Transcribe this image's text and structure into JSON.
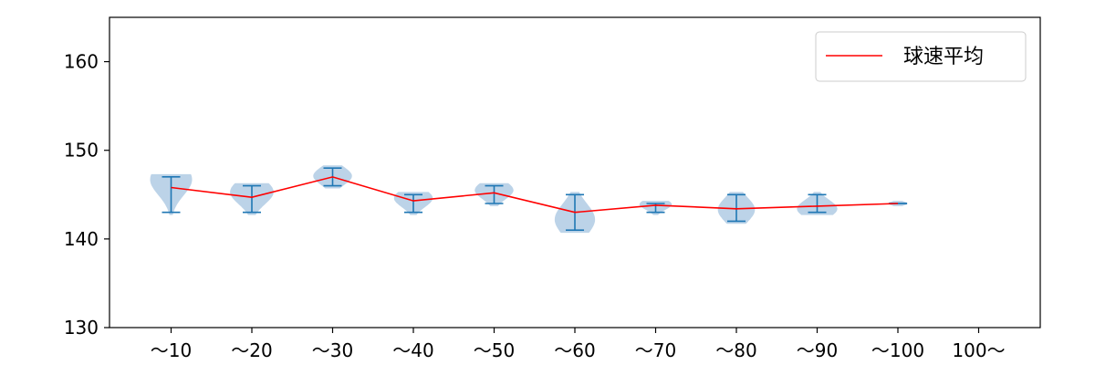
{
  "chart_data": {
    "type": "violin",
    "categories": [
      "〜10",
      "〜20",
      "〜30",
      "〜40",
      "〜50",
      "〜60",
      "〜70",
      "〜80",
      "〜90",
      "〜100",
      "100〜"
    ],
    "ylim": [
      130,
      165
    ],
    "yticks": [
      130,
      140,
      150,
      160
    ],
    "title": "",
    "xlabel": "",
    "ylabel": "",
    "legend": {
      "position": "top-right",
      "entries": [
        "球速平均"
      ]
    },
    "grid": false,
    "colors": {
      "violin_fill": "#a6c4e0",
      "whisker": "#1f77b4",
      "mean_line": "#ff0000"
    },
    "distributions": [
      {
        "category": "〜10",
        "min": 143,
        "max": 147,
        "mean": 145.8,
        "halfwidth": 0.26,
        "peak": 146.7
      },
      {
        "category": "〜20",
        "min": 143,
        "max": 146,
        "mean": 144.7,
        "halfwidth": 0.27,
        "peak": 145.3
      },
      {
        "category": "〜30",
        "min": 146,
        "max": 148,
        "mean": 147.0,
        "halfwidth": 0.24,
        "peak": 147.1
      },
      {
        "category": "〜40",
        "min": 143,
        "max": 145,
        "mean": 144.3,
        "halfwidth": 0.24,
        "peak": 144.6
      },
      {
        "category": "〜50",
        "min": 144,
        "max": 146,
        "mean": 145.2,
        "halfwidth": 0.24,
        "peak": 145.5
      },
      {
        "category": "〜60",
        "min": 141,
        "max": 145,
        "mean": 143.0,
        "halfwidth": 0.25,
        "peak": 142.2
      },
      {
        "category": "〜70",
        "min": 143,
        "max": 144,
        "mean": 143.8,
        "halfwidth": 0.2,
        "peak": 143.9
      },
      {
        "category": "〜80",
        "min": 142,
        "max": 145,
        "mean": 143.4,
        "halfwidth": 0.23,
        "peak": 143.3
      },
      {
        "category": "〜90",
        "min": 143,
        "max": 145,
        "mean": 143.7,
        "halfwidth": 0.25,
        "peak": 143.4
      },
      {
        "category": "〜100",
        "min": 144,
        "max": 144,
        "mean": 144.0,
        "halfwidth": 0.12,
        "peak": 144.0
      },
      {
        "category": "100〜",
        "min": 130,
        "max": 130,
        "mean": null,
        "halfwidth": 0.0,
        "peak": 130
      }
    ],
    "mean_series": {
      "name": "球速平均",
      "values": [
        145.8,
        144.7,
        147.0,
        144.3,
        145.2,
        143.0,
        143.8,
        143.4,
        143.7,
        144.0
      ]
    }
  }
}
